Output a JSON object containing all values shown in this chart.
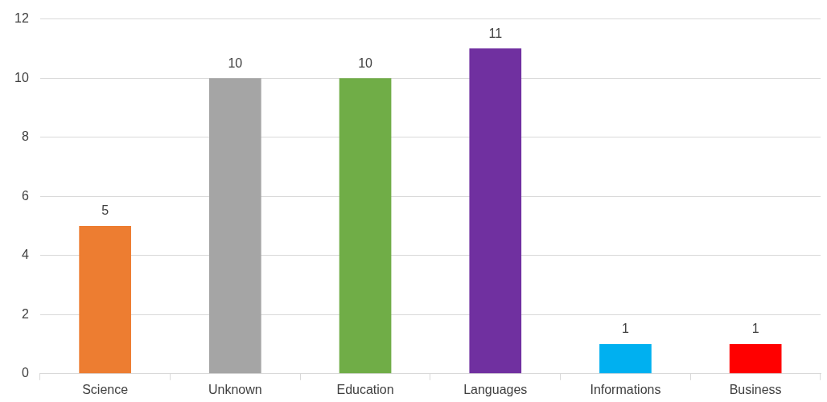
{
  "chart_data": {
    "type": "bar",
    "categories": [
      "Science",
      "Unknown",
      "Education",
      "Languages",
      "Informations",
      "Business"
    ],
    "values": [
      5,
      10,
      10,
      11,
      1,
      1
    ],
    "colors": [
      "#ed7d31",
      "#a5a5a5",
      "#70ad47",
      "#7030a0",
      "#00b0f0",
      "#ff0000"
    ],
    "ylim": [
      0,
      12
    ],
    "yticks": [
      0,
      2,
      4,
      6,
      8,
      10,
      12
    ],
    "grid": "y",
    "data_labels": true,
    "legend": false
  }
}
